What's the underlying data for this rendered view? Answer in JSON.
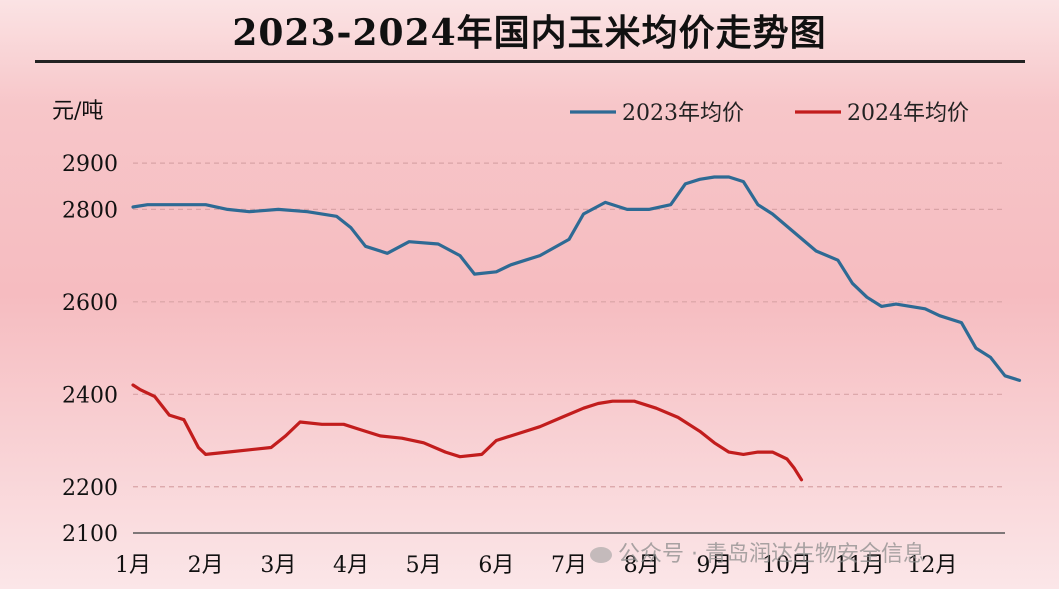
{
  "title": "2023-2024年国内玉米均价走势图",
  "watermark": "公众号 · 青岛润达生物安全信息",
  "chart_data": {
    "type": "line",
    "title": "2023-2024年国内玉米均价走势图",
    "ylabel": "元/吨",
    "xlabel": "",
    "ylim": [
      2100,
      2950
    ],
    "yticks": [
      "2100",
      "2200",
      "2400",
      "2600",
      "2800",
      "2900"
    ],
    "ytick_values": [
      2100,
      2200,
      2400,
      2600,
      2800,
      2900
    ],
    "categories": [
      "1月",
      "2月",
      "3月",
      "4月",
      "5月",
      "6月",
      "7月",
      "8月",
      "9月",
      "10月",
      "11月",
      "12月"
    ],
    "xlim": [
      1,
      13
    ],
    "grid": "horizontal dashed",
    "legend_position": "top-right",
    "series": [
      {
        "name": "2023年均价",
        "color": "#2e6a94",
        "x": [
          1.0,
          1.2,
          1.5,
          2.0,
          2.3,
          2.6,
          3.0,
          3.4,
          3.8,
          4.0,
          4.2,
          4.5,
          4.8,
          5.2,
          5.5,
          5.7,
          6.0,
          6.2,
          6.4,
          6.6,
          7.0,
          7.2,
          7.5,
          7.8,
          8.1,
          8.4,
          8.6,
          8.8,
          9.0,
          9.2,
          9.4,
          9.6,
          9.8,
          10.1,
          10.4,
          10.7,
          10.9,
          11.1,
          11.3,
          11.5,
          11.7,
          11.9,
          12.1,
          12.4,
          12.6,
          12.8,
          13.0,
          13.2
        ],
        "values": [
          2805,
          2810,
          2810,
          2810,
          2800,
          2795,
          2800,
          2795,
          2785,
          2760,
          2720,
          2705,
          2730,
          2725,
          2700,
          2660,
          2665,
          2680,
          2690,
          2700,
          2735,
          2790,
          2815,
          2800,
          2800,
          2810,
          2855,
          2865,
          2870,
          2870,
          2860,
          2810,
          2790,
          2750,
          2710,
          2690,
          2640,
          2610,
          2590,
          2595,
          2590,
          2585,
          2570,
          2555,
          2500,
          2480,
          2440,
          2430
        ]
      },
      {
        "name": "2024年均价",
        "color": "#c21d1d",
        "x": [
          1.0,
          1.1,
          1.3,
          1.5,
          1.7,
          1.9,
          2.0,
          2.3,
          2.6,
          2.9,
          3.1,
          3.3,
          3.6,
          3.9,
          4.1,
          4.4,
          4.7,
          5.0,
          5.3,
          5.5,
          5.8,
          6.0,
          6.3,
          6.6,
          6.9,
          7.2,
          7.4,
          7.6,
          7.9,
          8.2,
          8.5,
          8.8,
          9.0,
          9.2,
          9.4,
          9.6,
          9.8,
          10.0,
          10.1,
          10.2
        ],
        "values": [
          2420,
          2410,
          2395,
          2355,
          2345,
          2285,
          2270,
          2275,
          2280,
          2285,
          2310,
          2340,
          2335,
          2335,
          2325,
          2310,
          2305,
          2295,
          2275,
          2265,
          2270,
          2300,
          2315,
          2330,
          2350,
          2370,
          2380,
          2385,
          2385,
          2370,
          2350,
          2320,
          2295,
          2275,
          2270,
          2275,
          2275,
          2260,
          2240,
          2215
        ]
      }
    ]
  }
}
